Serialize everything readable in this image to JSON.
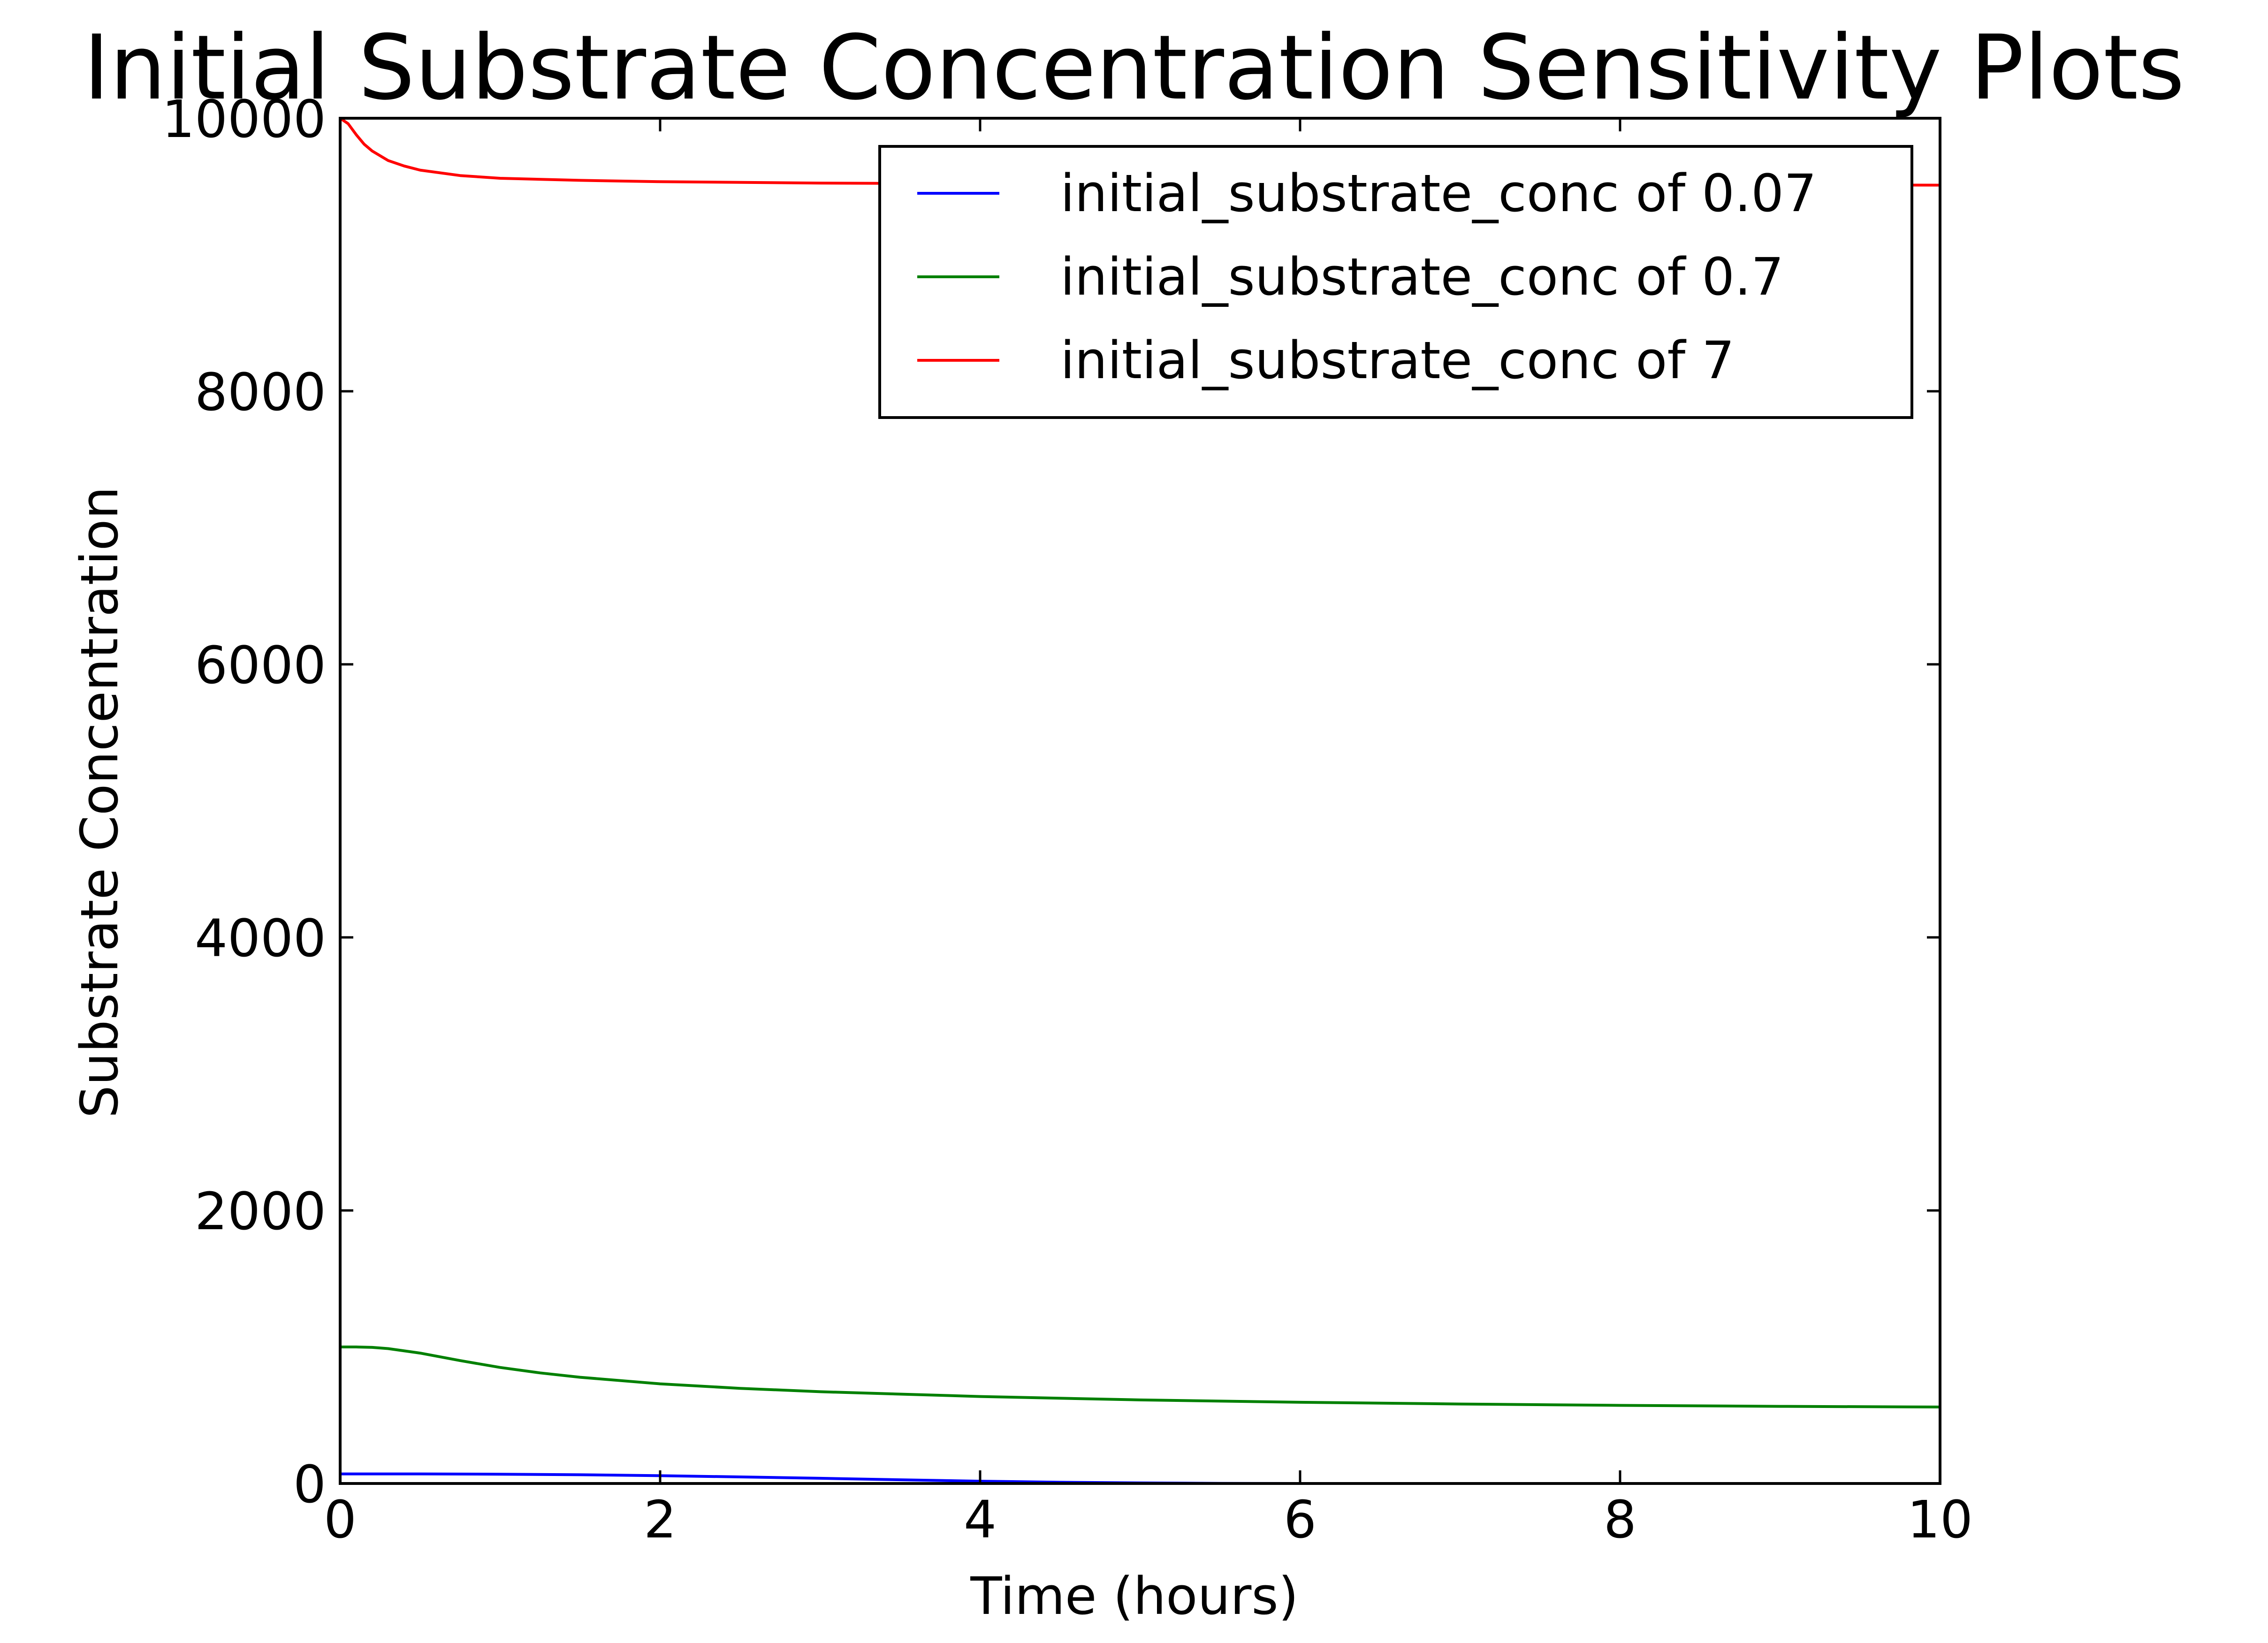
{
  "chart_data": {
    "type": "line",
    "title": "Initial Substrate Concentration Sensitivity Plots",
    "xlabel": "Time (hours)",
    "ylabel": "Substrate Concentration",
    "xlim": [
      0,
      10
    ],
    "ylim": [
      0,
      10000
    ],
    "x_ticks": [
      0,
      2,
      4,
      6,
      8,
      10
    ],
    "y_ticks": [
      0,
      2000,
      4000,
      6000,
      8000,
      10000
    ],
    "grid": false,
    "legend_position": "top-right",
    "series": [
      {
        "name": "initial_substrate_conc of 0.07",
        "color": "#0000ff",
        "x": [
          0,
          0.5,
          1,
          1.5,
          2,
          2.5,
          3,
          3.5,
          4,
          4.5,
          5,
          5.5,
          6,
          6.5,
          7,
          8,
          9,
          10
        ],
        "y": [
          70,
          70,
          68,
          64,
          57,
          48,
          38,
          27,
          17,
          9,
          4,
          1,
          0,
          0,
          0,
          0,
          0,
          0
        ]
      },
      {
        "name": "initial_substrate_conc of 0.7",
        "color": "#008000",
        "x": [
          0,
          0.1,
          0.2,
          0.3,
          0.5,
          0.75,
          1,
          1.25,
          1.5,
          2,
          2.5,
          3,
          4,
          5,
          6,
          7,
          8,
          9,
          10
        ],
        "y": [
          1000,
          1000,
          997,
          988,
          955,
          900,
          850,
          810,
          778,
          730,
          697,
          672,
          637,
          612,
          595,
          582,
          572,
          565,
          560
        ]
      },
      {
        "name": "initial_substrate_conc of 7",
        "color": "#ff0000",
        "x": [
          0,
          0.05,
          0.1,
          0.15,
          0.2,
          0.3,
          0.4,
          0.5,
          0.75,
          1,
          1.5,
          2,
          3,
          4,
          5,
          6,
          7,
          8,
          9,
          10
        ],
        "y": [
          10000,
          9960,
          9880,
          9810,
          9760,
          9690,
          9650,
          9620,
          9580,
          9560,
          9545,
          9535,
          9525,
          9520,
          9518,
          9515,
          9513,
          9512,
          9511,
          9510
        ]
      }
    ]
  }
}
